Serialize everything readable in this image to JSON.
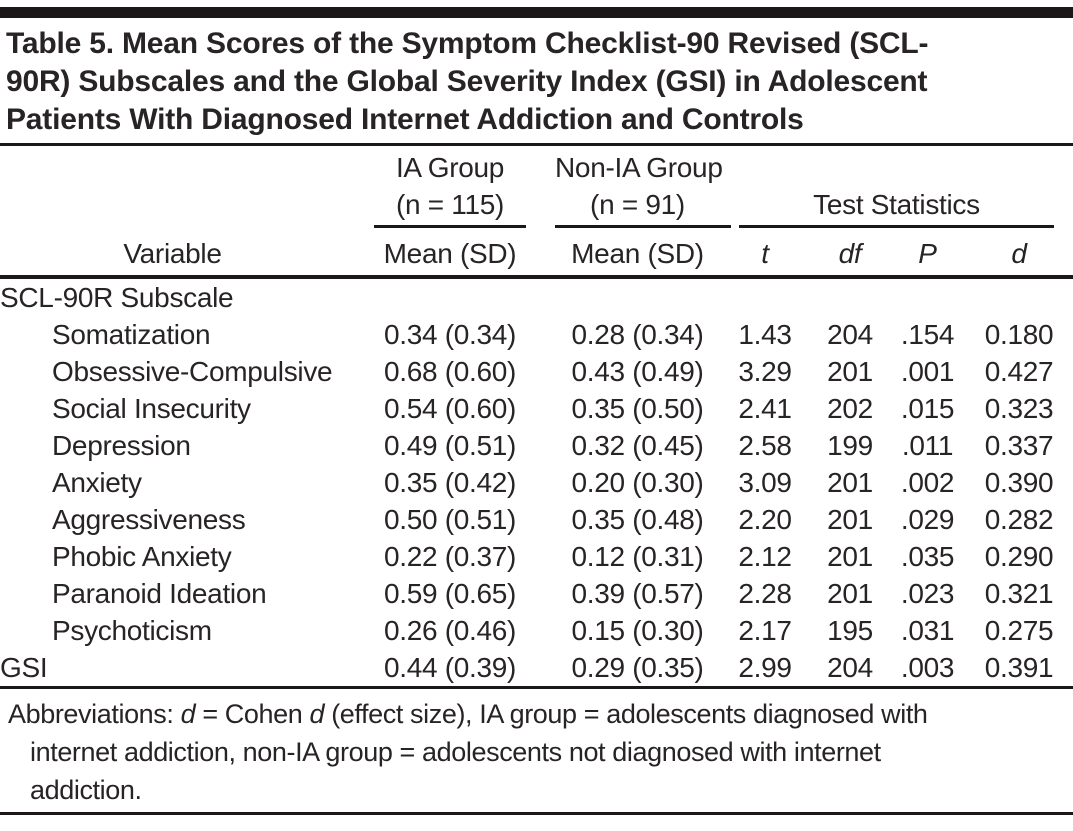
{
  "title": {
    "line1": "Table 5. Mean Scores of the Symptom Checklist-90 Revised (SCL-",
    "line2": "90R) Subscales and the Global Severity Index (GSI) in Adolescent",
    "line3": "Patients With Diagnosed Internet Addiction and Controls"
  },
  "table": {
    "group_headers": {
      "ia_group": "IA Group",
      "ia_group_n": "(n = 115)",
      "non_ia_group": "Non-IA Group",
      "non_ia_group_n": "(n = 91)",
      "test_statistics": "Test Statistics"
    },
    "columns": {
      "variable": "Variable",
      "ia_mean": "Mean (SD)",
      "non_ia_mean": "Mean (SD)",
      "t": "t",
      "df": "df",
      "p": "P",
      "d": "d"
    },
    "rows": [
      {
        "variable": "SCL-90R Subscale",
        "indent": false,
        "ia": "",
        "non_ia": "",
        "t": "",
        "df": "",
        "p": "",
        "d": ""
      },
      {
        "variable": "Somatization",
        "indent": true,
        "ia": "0.34 (0.34)",
        "non_ia": "0.28 (0.34)",
        "t": "1.43",
        "df": "204",
        "p": ".154",
        "d": "0.180"
      },
      {
        "variable": "Obsessive-Compulsive",
        "indent": true,
        "ia": "0.68 (0.60)",
        "non_ia": "0.43 (0.49)",
        "t": "3.29",
        "df": "201",
        "p": ".001",
        "d": "0.427"
      },
      {
        "variable": "Social Insecurity",
        "indent": true,
        "ia": "0.54 (0.60)",
        "non_ia": "0.35 (0.50)",
        "t": "2.41",
        "df": "202",
        "p": ".015",
        "d": "0.323"
      },
      {
        "variable": "Depression",
        "indent": true,
        "ia": "0.49 (0.51)",
        "non_ia": "0.32 (0.45)",
        "t": "2.58",
        "df": "199",
        "p": ".011",
        "d": "0.337"
      },
      {
        "variable": "Anxiety",
        "indent": true,
        "ia": "0.35 (0.42)",
        "non_ia": "0.20 (0.30)",
        "t": "3.09",
        "df": "201",
        "p": ".002",
        "d": "0.390"
      },
      {
        "variable": "Aggressiveness",
        "indent": true,
        "ia": "0.50 (0.51)",
        "non_ia": "0.35 (0.48)",
        "t": "2.20",
        "df": "201",
        "p": ".029",
        "d": "0.282"
      },
      {
        "variable": "Phobic Anxiety",
        "indent": true,
        "ia": "0.22 (0.37)",
        "non_ia": "0.12 (0.31)",
        "t": "2.12",
        "df": "201",
        "p": ".035",
        "d": "0.290"
      },
      {
        "variable": "Paranoid Ideation",
        "indent": true,
        "ia": "0.59 (0.65)",
        "non_ia": "0.39 (0.57)",
        "t": "2.28",
        "df": "201",
        "p": ".023",
        "d": "0.321"
      },
      {
        "variable": "Psychoticism",
        "indent": true,
        "ia": "0.26 (0.46)",
        "non_ia": "0.15 (0.30)",
        "t": "2.17",
        "df": "195",
        "p": ".031",
        "d": "0.275"
      },
      {
        "variable": "GSI",
        "indent": false,
        "ia": "0.44 (0.39)",
        "non_ia": "0.29 (0.35)",
        "t": "2.99",
        "df": "204",
        "p": ".003",
        "d": "0.391"
      }
    ]
  },
  "footnote": {
    "line1_segments": [
      {
        "text": "Abbreviations: ",
        "italic": false
      },
      {
        "text": "d",
        "italic": true
      },
      {
        "text": " = Cohen ",
        "italic": false
      },
      {
        "text": "d",
        "italic": true
      },
      {
        "text": " (effect size), IA group = adolescents diagnosed with",
        "italic": false
      }
    ],
    "line2": "internet addiction, non-IA group = adolescents not diagnosed with internet",
    "line3": "addiction."
  },
  "colors": {
    "text": "#282425",
    "rule": "#1c1819",
    "background": "#ffffff"
  }
}
